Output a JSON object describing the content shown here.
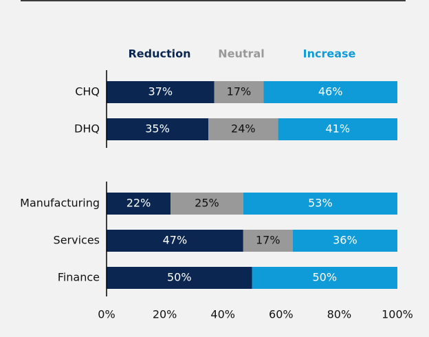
{
  "chart_data": {
    "type": "stacked-bar-horizontal",
    "categories": [
      "CHQ",
      "DHQ",
      null,
      "Manufacturing",
      "Services",
      "Finance"
    ],
    "series": [
      {
        "name": "Reduction",
        "color": "#0b2650",
        "label_color": "#ffffff",
        "values": [
          37,
          35,
          null,
          22,
          47,
          50
        ],
        "value_labels": [
          "37%",
          "35%",
          null,
          "22%",
          "47%",
          "50%"
        ]
      },
      {
        "name": "Neutral",
        "color": "#999999",
        "label_color": "#111111",
        "values": [
          17,
          24,
          null,
          25,
          17,
          0
        ],
        "value_labels": [
          "17%",
          "24%",
          null,
          "25%",
          "17%",
          null
        ]
      },
      {
        "name": "Increase",
        "color": "#0e9bd7",
        "label_color": "#ffffff",
        "values": [
          46,
          41,
          null,
          53,
          36,
          50
        ],
        "value_labels": [
          "46%",
          "41%",
          null,
          "53%",
          "36%",
          "50%"
        ]
      }
    ],
    "xlim": [
      0,
      100
    ],
    "xticks": [
      {
        "value": 0,
        "label": "0%"
      },
      {
        "value": 20,
        "label": "20%"
      },
      {
        "value": 40,
        "label": "40%"
      },
      {
        "value": 60,
        "label": "60%"
      },
      {
        "value": 80,
        "label": "80%"
      },
      {
        "value": 100,
        "label": "100%"
      }
    ],
    "legend": "top"
  }
}
